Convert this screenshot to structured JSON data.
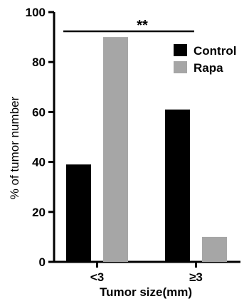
{
  "chart_data": {
    "type": "bar",
    "categories": [
      "<3",
      "≥3"
    ],
    "series": [
      {
        "name": "Control",
        "values": [
          39,
          61
        ],
        "color": "#000000"
      },
      {
        "name": "Rapa",
        "values": [
          90,
          10
        ],
        "color": "#a6a6a6"
      }
    ],
    "xlabel": "Tumor size(mm)",
    "ylabel": "% of tumor number",
    "ylim": [
      0,
      100
    ],
    "yticks": [
      0,
      20,
      40,
      60,
      80,
      100
    ],
    "legend_position": "top-right",
    "grid": false,
    "annotation": {
      "text": "**",
      "spans": [
        "<3",
        "≥3"
      ]
    }
  }
}
